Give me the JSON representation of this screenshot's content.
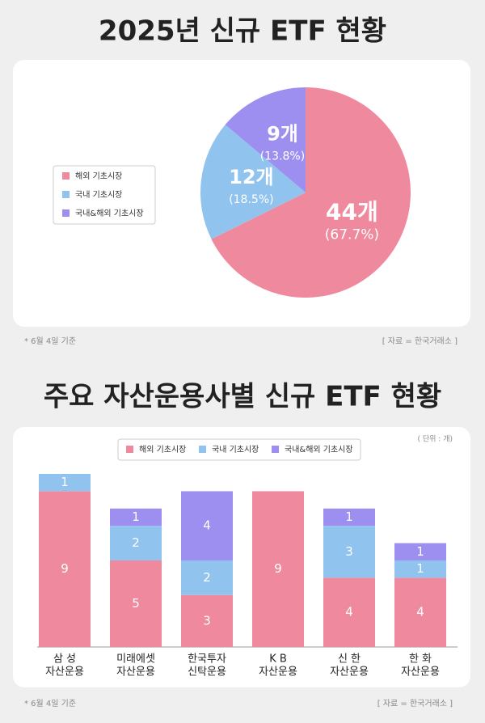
{
  "chart_data": [
    {
      "type": "pie",
      "title": "2025년 신규 ETF 현황",
      "categories": [
        "해외 기초시장",
        "국내 기초시장",
        "국내&해외 기초시장"
      ],
      "values": [
        44,
        12,
        9
      ],
      "value_labels": [
        "44개",
        "12개",
        "9개"
      ],
      "percent_labels": [
        "(67.7%)",
        "(18.5%)",
        "(13.8%)"
      ],
      "colors": [
        "#ef8a9e",
        "#90c4ee",
        "#9d8ff0"
      ],
      "legend": "left",
      "note": "* 6월 4일 기준",
      "source": "[ 자료 = 한국거래소 ]"
    },
    {
      "type": "stacked_bar",
      "title": "주요 자산운용사별 신규 ETF 현황",
      "unit": "( 단위 : 개)",
      "categories": [
        [
          "삼 성",
          "자산운용"
        ],
        [
          "미래에셋",
          "자산운용"
        ],
        [
          "한국투자",
          "신탁운용"
        ],
        [
          "K B",
          "자산운용"
        ],
        [
          "신 한",
          "자산운용"
        ],
        [
          "한 화",
          "자산운용"
        ]
      ],
      "series": [
        {
          "name": "해외 기초시장",
          "color": "#ef8a9e",
          "values": [
            9,
            5,
            3,
            9,
            4,
            4
          ]
        },
        {
          "name": "국내 기초시장",
          "color": "#90c4ee",
          "values": [
            1,
            2,
            2,
            null,
            3,
            1
          ]
        },
        {
          "name": "국내&해외 기초시장",
          "color": "#9d8ff0",
          "values": [
            null,
            1,
            4,
            null,
            1,
            1
          ]
        }
      ],
      "legend": "top",
      "note": "* 6월 4일 기준",
      "source": "[ 자료 = 한국거래소 ]"
    }
  ]
}
